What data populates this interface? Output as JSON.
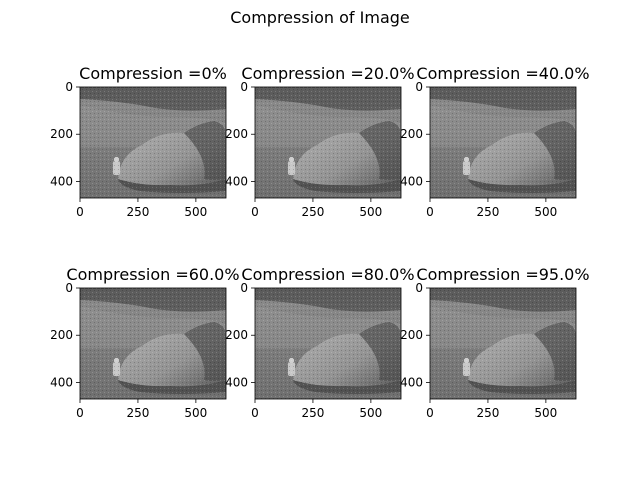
{
  "figure_title": "Compression of Image",
  "chart_data": [
    {
      "type": "image",
      "title": "Compression =0%",
      "compression_percent": 0,
      "image_description": "grayscale lunar surface photo with large boulder",
      "xlim": [
        0,
        630
      ],
      "ylim": [
        470,
        0
      ],
      "xticks": [
        0,
        250,
        500
      ],
      "yticks": [
        0,
        200,
        400
      ]
    },
    {
      "type": "image",
      "title": "Compression =20.0%",
      "compression_percent": 20.0,
      "image_description": "grayscale lunar surface photo with large boulder",
      "xlim": [
        0,
        630
      ],
      "ylim": [
        470,
        0
      ],
      "xticks": [
        0,
        250,
        500
      ],
      "yticks": [
        0,
        200,
        400
      ]
    },
    {
      "type": "image",
      "title": "Compression =40.0%",
      "compression_percent": 40.0,
      "image_description": "grayscale lunar surface photo with large boulder",
      "xlim": [
        0,
        630
      ],
      "ylim": [
        470,
        0
      ],
      "xticks": [
        0,
        250,
        500
      ],
      "yticks": [
        0,
        200,
        400
      ]
    },
    {
      "type": "image",
      "title": "Compression =60.0%",
      "compression_percent": 60.0,
      "image_description": "grayscale lunar surface photo with large boulder",
      "xlim": [
        0,
        630
      ],
      "ylim": [
        470,
        0
      ],
      "xticks": [
        0,
        250,
        500
      ],
      "yticks": [
        0,
        200,
        400
      ]
    },
    {
      "type": "image",
      "title": "Compression =80.0%",
      "compression_percent": 80.0,
      "image_description": "grayscale lunar surface photo with large boulder",
      "xlim": [
        0,
        630
      ],
      "ylim": [
        470,
        0
      ],
      "xticks": [
        0,
        250,
        500
      ],
      "yticks": [
        0,
        200,
        400
      ]
    },
    {
      "type": "image",
      "title": "Compression =95.0%",
      "compression_percent": 95.0,
      "image_description": "grayscale lunar surface photo with large boulder",
      "xlim": [
        0,
        630
      ],
      "ylim": [
        470,
        0
      ],
      "xticks": [
        0,
        250,
        500
      ],
      "yticks": [
        0,
        200,
        400
      ]
    }
  ]
}
